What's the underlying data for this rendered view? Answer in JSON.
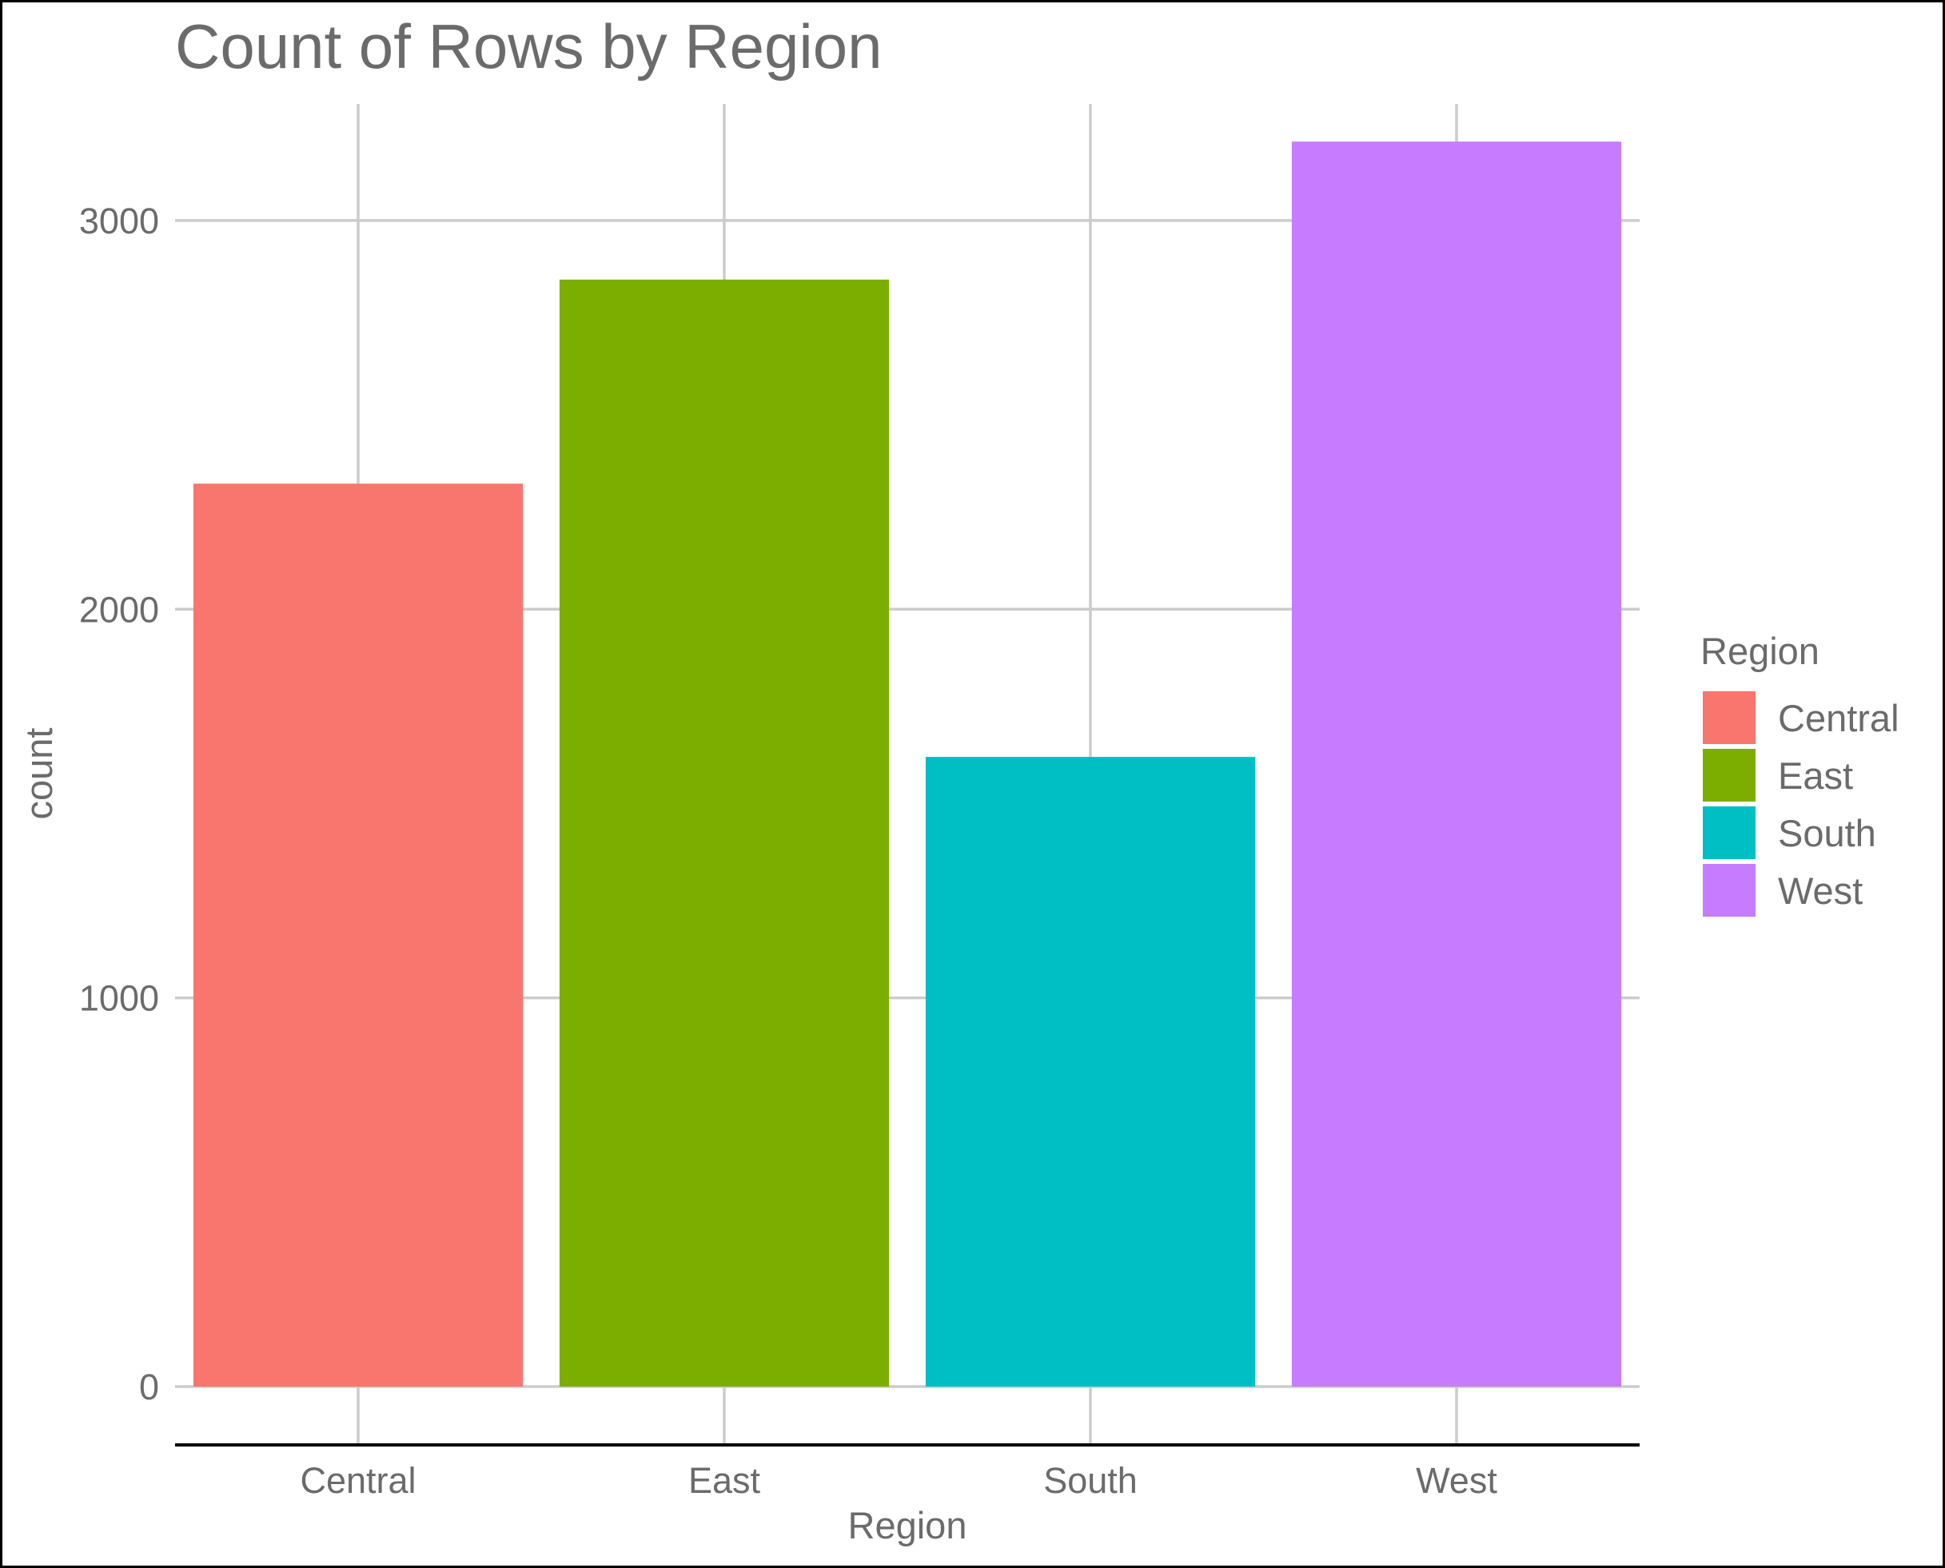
{
  "chart_data": {
    "type": "bar",
    "title": "Count of Rows by Region",
    "xlabel": "Region",
    "ylabel": "count",
    "categories": [
      "Central",
      "East",
      "South",
      "West"
    ],
    "values": [
      2323,
      2848,
      1620,
      3203
    ],
    "colors": [
      "#F8766D",
      "#7CAE00",
      "#00BFC4",
      "#C77CFF"
    ],
    "ylim": [
      -150,
      3300
    ],
    "yticks": [
      0,
      1000,
      2000,
      3000
    ],
    "ytick_labels": [
      "0",
      "1000",
      "2000",
      "3000"
    ],
    "grid": true,
    "legend": {
      "title": "Region",
      "placement": "right",
      "entries": [
        "Central",
        "East",
        "South",
        "West"
      ]
    }
  }
}
